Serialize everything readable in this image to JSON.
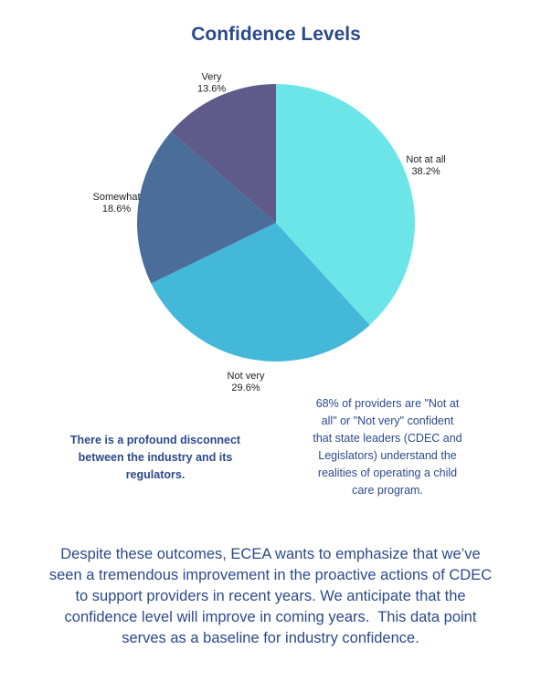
{
  "chart_data": {
    "type": "pie",
    "title": "Confidence Levels",
    "categories": [
      "Not at all",
      "Not very",
      "Somewhat",
      "Very"
    ],
    "values": [
      38.2,
      29.6,
      18.6,
      13.6
    ],
    "value_labels": [
      "38.2%",
      "29.6%",
      "18.6%",
      "13.6%"
    ],
    "colors": [
      "#6ce5e8",
      "#44b8d9",
      "#4a6d99",
      "#5e5a8a"
    ]
  },
  "notes": {
    "left": "There is a profound disconnect between the industry and its regulators.",
    "right": "68% of providers are \"Not at all\" or \"Not very\" confident that state leaders (CDEC and Legislators) understand the realities of operating a child care program."
  },
  "footer": "Despite these outcomes, ECEA wants to emphasize that we’ve seen a tremendous improvement in the proactive actions of CDEC to support providers in recent years. We anticipate that the confidence level will improve in coming years.  This data point serves as a baseline for industry confidence."
}
